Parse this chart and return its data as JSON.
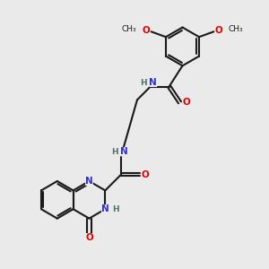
{
  "bg_color": "#eaeaea",
  "line_color": "#1a1a1a",
  "bond_lw": 1.5,
  "atom_colors": {
    "N": "#3030d0",
    "O": "#e00000",
    "H": "#507070",
    "C": "#1a1a1a"
  },
  "font_size_atom": 7.5,
  "font_size_h": 6.5,
  "font_size_ome": 6.5
}
